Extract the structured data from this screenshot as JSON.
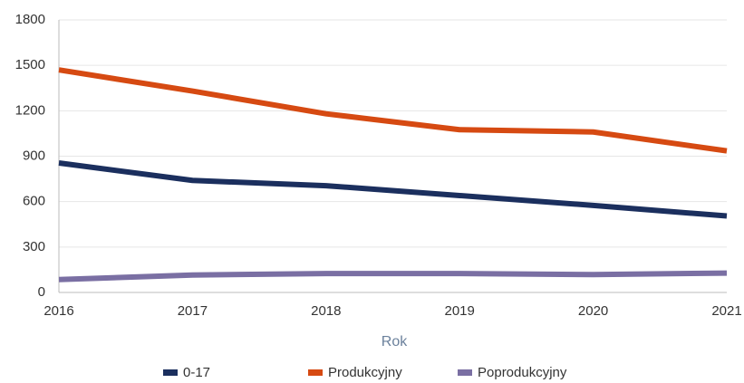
{
  "chart_data": {
    "type": "line",
    "categories": [
      "2016",
      "2017",
      "2018",
      "2019",
      "2020",
      "2021"
    ],
    "x_label": "Rok",
    "series": [
      {
        "name": "0-17",
        "color": "#1b2f5e",
        "values": [
          855,
          740,
          705,
          640,
          575,
          505
        ]
      },
      {
        "name": "Produkcyjny",
        "color": "#d64a12",
        "values": [
          1470,
          1330,
          1180,
          1075,
          1060,
          935
        ]
      },
      {
        "name": "Poprodukcyjny",
        "color": "#7a6fa3",
        "values": [
          85,
          115,
          125,
          125,
          118,
          128
        ]
      }
    ],
    "ylim": [
      0,
      1800
    ],
    "yticks": [
      0,
      300,
      600,
      900,
      1200,
      1500,
      1800
    ],
    "grid": true,
    "legend": "bottom"
  }
}
